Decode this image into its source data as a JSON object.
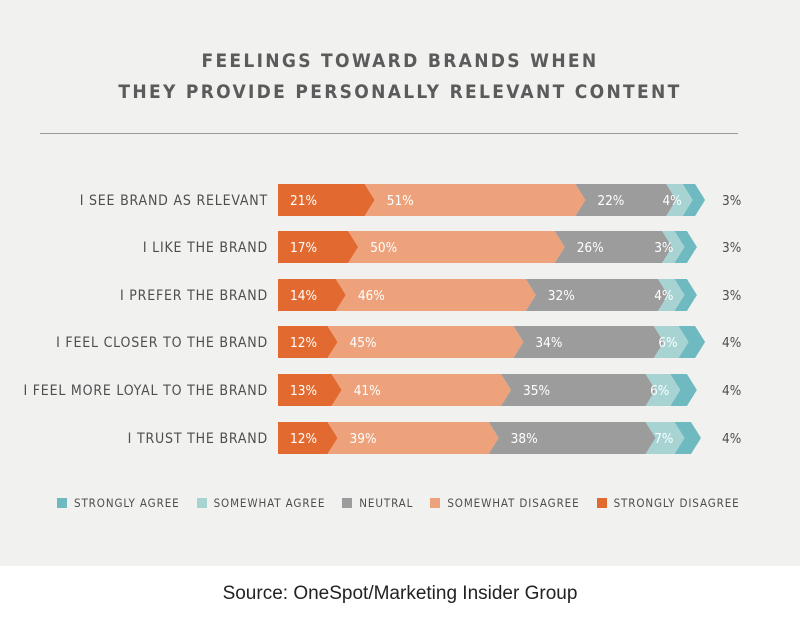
{
  "source": "Source: OneSpot/Marketing Insider Group",
  "chart_data": {
    "type": "bar",
    "orientation": "horizontal",
    "stacked": true,
    "title": [
      "FEELINGS TOWARD BRANDS WHEN",
      "THEY PROVIDE PERSONALLY RELEVANT CONTENT"
    ],
    "categories": [
      "I SEE BRAND AS RELEVANT",
      "I LIKE THE BRAND",
      "I PREFER THE BRAND",
      "I FEEL CLOSER TO THE BRAND",
      "I FEEL MORE LOYAL TO THE BRAND",
      "I TRUST THE BRAND"
    ],
    "series": [
      {
        "name": "STRONGLY DISAGREE",
        "color": "#e2692f",
        "values": [
          21,
          17,
          14,
          12,
          13,
          12
        ]
      },
      {
        "name": "SOMEWHAT DISAGREE",
        "color": "#eda27b",
        "values": [
          51,
          50,
          46,
          45,
          41,
          39
        ]
      },
      {
        "name": "NEUTRAL",
        "color": "#9c9c9c",
        "values": [
          22,
          26,
          32,
          34,
          35,
          38
        ]
      },
      {
        "name": "SOMEWHAT AGREE",
        "color": "#a7d3d3",
        "values": [
          4,
          3,
          4,
          6,
          6,
          7
        ]
      },
      {
        "name": "STRONGLY AGREE",
        "color": "#6fb9c0",
        "values": [
          3,
          3,
          3,
          4,
          4,
          4
        ]
      }
    ],
    "value_suffix": "%",
    "legend": {
      "position": "bottom",
      "order": [
        "STRONGLY AGREE",
        "SOMEWHAT AGREE",
        "NEUTRAL",
        "SOMEWHAT DISAGREE",
        "STRONGLY DISAGREE"
      ]
    },
    "grid": false
  }
}
